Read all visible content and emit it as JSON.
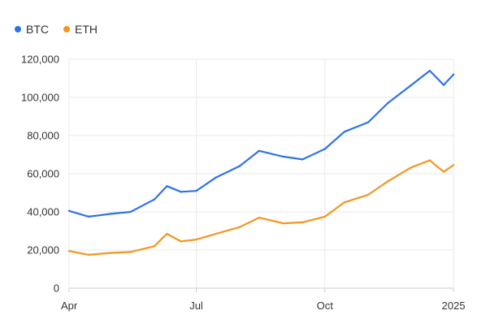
{
  "chart_data": {
    "type": "line",
    "title": "",
    "xlabel": "",
    "ylabel": "",
    "ylim": [
      0,
      120000
    ],
    "yticks": [
      "0",
      "20,000",
      "40,000",
      "60,000",
      "80,000",
      "100,000",
      "120,000"
    ],
    "x_tick_labels": [
      "Apr",
      "Jul",
      "Oct",
      "2025"
    ],
    "grid": true,
    "legend_placement": "top-left",
    "x": [
      "2024-04-01",
      "2024-04-15",
      "2024-05-01",
      "2024-05-15",
      "2024-06-01",
      "2024-06-10",
      "2024-06-20",
      "2024-07-01",
      "2024-07-15",
      "2024-08-01",
      "2024-08-15",
      "2024-09-01",
      "2024-09-15",
      "2024-10-01",
      "2024-10-15",
      "2024-11-01",
      "2024-11-15",
      "2024-12-01",
      "2024-12-15",
      "2024-12-25",
      "2025-01-01"
    ],
    "series": [
      {
        "name": "BTC",
        "color": "#2f72e8",
        "values": [
          40500,
          37500,
          39000,
          40000,
          46500,
          53500,
          50500,
          51000,
          58000,
          64000,
          72000,
          69000,
          67500,
          73000,
          82000,
          87000,
          97000,
          106000,
          114000,
          106500,
          112000
        ]
      },
      {
        "name": "ETH",
        "color": "#f4951f",
        "values": [
          19500,
          17500,
          18500,
          19000,
          22000,
          28500,
          24500,
          25500,
          28500,
          32000,
          37000,
          34000,
          34500,
          37500,
          45000,
          49000,
          56000,
          63000,
          67000,
          61000,
          64500
        ]
      }
    ]
  }
}
